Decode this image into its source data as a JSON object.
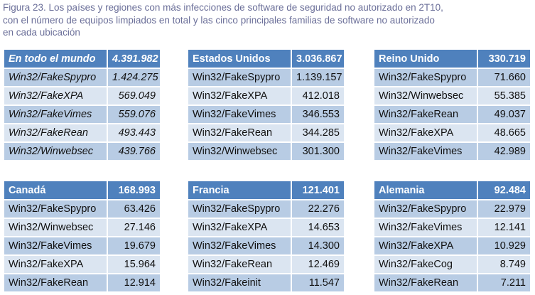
{
  "caption": {
    "line1": "Figura 23. Los países y regiones con más infecciones de software de seguridad no autorizado en 2T10,",
    "line2": "con el número de equipos limpiados en total y las cinco principales familias de software no autorizado",
    "line3": "en cada ubicación"
  },
  "tables": [
    {
      "region": "En todo el mundo",
      "total": "4.391.982",
      "rows": [
        {
          "family": "Win32/FakeSpypro",
          "count": "1.424.275"
        },
        {
          "family": "Win32/FakeXPA",
          "count": "569.049"
        },
        {
          "family": "Win32/FakeVimes",
          "count": "559.076"
        },
        {
          "family": "Win32/FakeRean",
          "count": "493.443"
        },
        {
          "family": "Win32/Winwebsec",
          "count": "439.766"
        }
      ]
    },
    {
      "region": "Estados Unidos",
      "total": "3.036.867",
      "rows": [
        {
          "family": "Win32/FakeSpypro",
          "count": "1.139.157"
        },
        {
          "family": "Win32/FakeXPA",
          "count": "412.018"
        },
        {
          "family": "Win32/FakeVimes",
          "count": "346.553"
        },
        {
          "family": "Win32/FakeRean",
          "count": "344.285"
        },
        {
          "family": "Win32/Winwebsec",
          "count": "301.300"
        }
      ]
    },
    {
      "region": "Reino Unido",
      "total": "330.719",
      "rows": [
        {
          "family": "Win32/FakeSpypro",
          "count": "71.660"
        },
        {
          "family": "Win32/Winwebsec",
          "count": "55.385"
        },
        {
          "family": "Win32/FakeRean",
          "count": "49.037"
        },
        {
          "family": "Win32/FakeXPA",
          "count": "48.665"
        },
        {
          "family": "Win32/FakeVimes",
          "count": "42.989"
        }
      ]
    },
    {
      "region": "Canadá",
      "total": "168.993",
      "rows": [
        {
          "family": "Win32/FakeSpypro",
          "count": "63.426"
        },
        {
          "family": "Win32/Winwebsec",
          "count": "27.146"
        },
        {
          "family": "Win32/FakeVimes",
          "count": "19.679"
        },
        {
          "family": "Win32/FakeXPA",
          "count": "15.964"
        },
        {
          "family": "Win32/FakeRean",
          "count": "12.914"
        }
      ]
    },
    {
      "region": "Francia",
      "total": "121.401",
      "rows": [
        {
          "family": "Win32/FakeSpypro",
          "count": "22.276"
        },
        {
          "family": "Win32/FakeXPA",
          "count": "14.653"
        },
        {
          "family": "Win32/FakeVimes",
          "count": "14.300"
        },
        {
          "family": "Win32/FakeRean",
          "count": "12.469"
        },
        {
          "family": "Win32/Fakeinit",
          "count": "11.547"
        }
      ]
    },
    {
      "region": "Alemania",
      "total": "92.484",
      "rows": [
        {
          "family": "Win32/FakeSpypro",
          "count": "22.979"
        },
        {
          "family": "Win32/FakeVimes",
          "count": "12.141"
        },
        {
          "family": "Win32/FakeXPA",
          "count": "10.929"
        },
        {
          "family": "Win32/FakeCog",
          "count": "8.749"
        },
        {
          "family": "Win32/FakeRean",
          "count": "7.211"
        }
      ]
    }
  ]
}
